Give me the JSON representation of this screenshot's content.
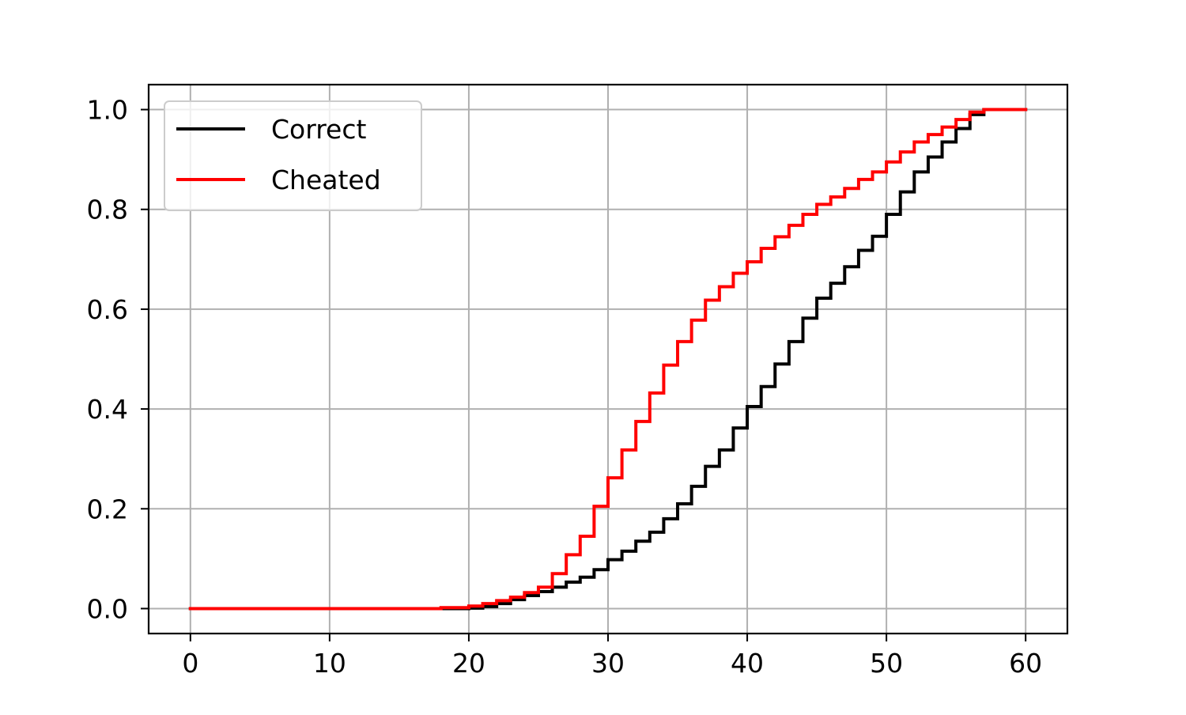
{
  "chart_data": {
    "type": "line",
    "step": "post",
    "title": "",
    "xlabel": "",
    "ylabel": "",
    "xlim": [
      -3,
      63
    ],
    "ylim": [
      -0.05,
      1.05
    ],
    "xticks": [
      0,
      10,
      20,
      30,
      40,
      50,
      60
    ],
    "xtick_labels": [
      "0",
      "10",
      "20",
      "30",
      "40",
      "50",
      "60"
    ],
    "yticks": [
      0.0,
      0.2,
      0.4,
      0.6,
      0.8,
      1.0
    ],
    "ytick_labels": [
      "0.0",
      "0.2",
      "0.4",
      "0.6",
      "0.8",
      "1.0"
    ],
    "grid": true,
    "legend_position": "upper-left",
    "x": [
      0,
      1,
      2,
      3,
      4,
      5,
      6,
      7,
      8,
      9,
      10,
      11,
      12,
      13,
      14,
      15,
      16,
      17,
      18,
      19,
      20,
      21,
      22,
      23,
      24,
      25,
      26,
      27,
      28,
      29,
      30,
      31,
      32,
      33,
      34,
      35,
      36,
      37,
      38,
      39,
      40,
      41,
      42,
      43,
      44,
      45,
      46,
      47,
      48,
      49,
      50,
      51,
      52,
      53,
      54,
      55,
      56,
      57,
      58,
      59,
      60
    ],
    "series": [
      {
        "name": "Correct",
        "color": "#000000",
        "values": [
          0,
          0,
          0,
          0,
          0,
          0,
          0,
          0,
          0,
          0,
          0,
          0,
          0,
          0,
          0,
          0,
          0,
          0,
          0,
          0,
          0.001,
          0.004,
          0.01,
          0.018,
          0.026,
          0.034,
          0.043,
          0.053,
          0.063,
          0.078,
          0.098,
          0.115,
          0.135,
          0.153,
          0.18,
          0.21,
          0.245,
          0.285,
          0.318,
          0.362,
          0.405,
          0.445,
          0.49,
          0.535,
          0.582,
          0.622,
          0.652,
          0.685,
          0.718,
          0.746,
          0.79,
          0.835,
          0.875,
          0.905,
          0.935,
          0.962,
          0.99,
          1.0,
          1.0,
          1.0,
          1.0
        ]
      },
      {
        "name": "Cheated",
        "color": "#ff0000",
        "values": [
          0,
          0,
          0,
          0,
          0,
          0,
          0,
          0,
          0,
          0,
          0,
          0,
          0,
          0,
          0,
          0,
          0,
          0,
          0.002,
          0.002,
          0.005,
          0.01,
          0.016,
          0.023,
          0.032,
          0.043,
          0.07,
          0.108,
          0.145,
          0.205,
          0.262,
          0.318,
          0.375,
          0.432,
          0.488,
          0.535,
          0.578,
          0.618,
          0.645,
          0.672,
          0.695,
          0.722,
          0.745,
          0.768,
          0.79,
          0.81,
          0.825,
          0.842,
          0.86,
          0.875,
          0.895,
          0.915,
          0.935,
          0.95,
          0.965,
          0.98,
          0.995,
          1.0,
          1.0,
          1.0,
          1.0
        ]
      }
    ]
  }
}
